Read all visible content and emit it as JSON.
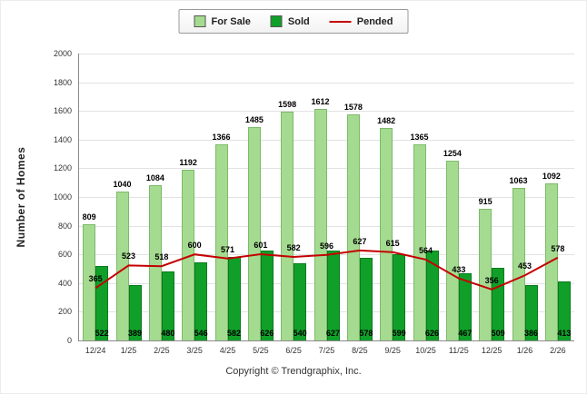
{
  "chart_data": {
    "type": "bar",
    "categories": [
      "12/24",
      "1/25",
      "2/25",
      "3/25",
      "4/25",
      "5/25",
      "6/25",
      "7/25",
      "8/25",
      "9/25",
      "10/25",
      "11/25",
      "12/25",
      "1/26",
      "2/26"
    ],
    "series": [
      {
        "name": "For Sale",
        "type": "bar",
        "color": "#a5db90",
        "border_color": "#7cba69",
        "values": [
          809,
          1040,
          1084,
          1192,
          1366,
          1485,
          1598,
          1612,
          1578,
          1482,
          1365,
          1254,
          915,
          1063,
          1092
        ]
      },
      {
        "name": "Sold",
        "type": "bar",
        "color": "#10a029",
        "border_color": "#0a7a1e",
        "values": [
          522,
          389,
          480,
          546,
          582,
          626,
          540,
          627,
          578,
          599,
          626,
          467,
          509,
          386,
          413
        ]
      },
      {
        "name": "Pended",
        "type": "line",
        "color": "#c40000",
        "values": [
          365,
          523,
          518,
          600,
          571,
          601,
          582,
          596,
          627,
          615,
          564,
          433,
          356,
          453,
          578
        ]
      }
    ],
    "title": "",
    "xlabel": "",
    "ylabel": "Number of Homes",
    "ylim": [
      0,
      2000
    ],
    "ytick_step": 200,
    "grid": true,
    "legend_position": "top"
  },
  "footer": {
    "copyright": "Copyright © Trendgraphix, Inc."
  }
}
